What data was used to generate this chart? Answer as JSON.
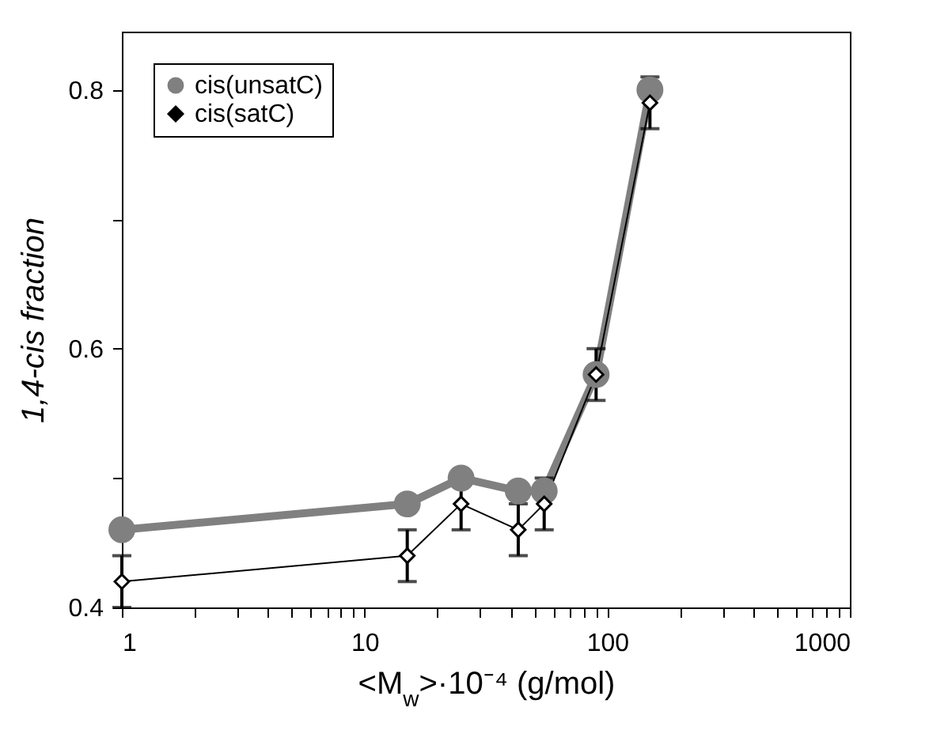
{
  "chart_data": {
    "type": "line",
    "xlabel": "<M$_{w}$>·10⁻⁴ (g/mol)",
    "ylabel": "1,4-cis fraction",
    "x": [
      1,
      15,
      25,
      43,
      55,
      90,
      150
    ],
    "series": [
      {
        "name": "cis(unsatC)",
        "color": "#808080",
        "marker": "circle",
        "values": [
          0.46,
          0.48,
          0.5,
          0.49,
          0.49,
          0.58,
          0.8
        ]
      },
      {
        "name": "cis(satC)",
        "color": "#000000",
        "marker": "diamond",
        "values": [
          0.42,
          0.44,
          0.48,
          0.46,
          0.48,
          0.58,
          0.79
        ],
        "errors": [
          0.02,
          0.02,
          0.02,
          0.02,
          0.02,
          0.02,
          0.02
        ]
      }
    ],
    "log": "x",
    "xlim": [
      1,
      1000
    ],
    "ylim": [
      0.4,
      0.845
    ],
    "xticks": [
      1,
      {
        "value": 2,
        "label": null
      },
      {
        "value": 3,
        "label": null
      },
      {
        "value": 4,
        "label": null
      },
      {
        "value": 5,
        "label": null
      },
      {
        "value": 6,
        "label": null
      },
      {
        "value": 7,
        "label": null
      },
      {
        "value": 8,
        "label": null
      },
      {
        "value": 9,
        "label": null
      },
      10,
      {
        "value": 20,
        "label": null
      },
      {
        "value": 30,
        "label": null
      },
      {
        "value": 40,
        "label": null
      },
      {
        "value": 50,
        "label": null
      },
      {
        "value": 60,
        "label": null
      },
      {
        "value": 70,
        "label": null
      },
      {
        "value": 80,
        "label": null
      },
      {
        "value": 90,
        "label": null
      },
      100,
      {
        "value": 200,
        "label": null
      },
      {
        "value": 300,
        "label": null
      },
      {
        "value": 400,
        "label": null
      },
      {
        "value": 500,
        "label": null
      },
      {
        "value": 600,
        "label": null
      },
      {
        "value": 700,
        "label": null
      },
      {
        "value": 800,
        "label": null
      },
      {
        "value": 900,
        "label": null
      },
      1000
    ],
    "yticks": [
      0.4,
      {
        "value": 0.5,
        "label": null
      },
      0.6,
      {
        "value": 0.7,
        "label": null
      },
      0.8
    ],
    "legend": "top left",
    "grid": false
  }
}
